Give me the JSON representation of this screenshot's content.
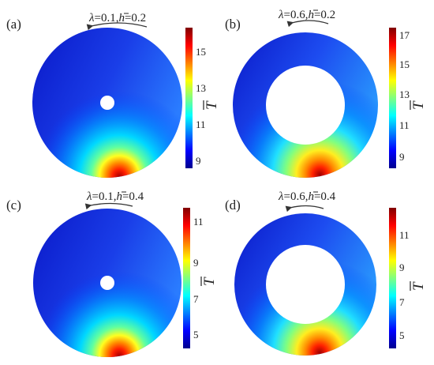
{
  "panels": [
    {
      "id": "a",
      "label": "(a)",
      "title": {
        "lambda": "λ",
        "lambda_val": "=0.1,",
        "h": "h",
        "h_val": "=0.2"
      },
      "colorbar": {
        "ticks": [
          "9",
          "11",
          "13",
          "15"
        ],
        "label": "T"
      }
    },
    {
      "id": "b",
      "label": "(b)",
      "title": {
        "lambda": "λ",
        "lambda_val": "=0.6,",
        "h": "h",
        "h_val": "=0.2"
      },
      "colorbar": {
        "ticks": [
          "9",
          "11",
          "13",
          "15",
          "17"
        ],
        "label": "T"
      }
    },
    {
      "id": "c",
      "label": "(c)",
      "title": {
        "lambda": "λ",
        "lambda_val": "=0.1,",
        "h": "h",
        "h_val": "=0.4"
      },
      "colorbar": {
        "ticks": [
          "5",
          "7",
          "9",
          "11"
        ],
        "label": "T"
      }
    },
    {
      "id": "d",
      "label": "(d)",
      "title": {
        "lambda": "λ",
        "lambda_val": "=0.6,",
        "h": "h",
        "h_val": "=0.4"
      },
      "colorbar": {
        "ticks": [
          "5",
          "7",
          "9",
          "11"
        ],
        "label": "T"
      }
    }
  ],
  "colors": {
    "jet": [
      "#00008f",
      "#0000ff",
      "#0080ff",
      "#00ffff",
      "#80ff80",
      "#ffff00",
      "#ff8000",
      "#ff0000",
      "#800000"
    ],
    "disk_base": "#1632d8",
    "arrow": "#333333"
  }
}
